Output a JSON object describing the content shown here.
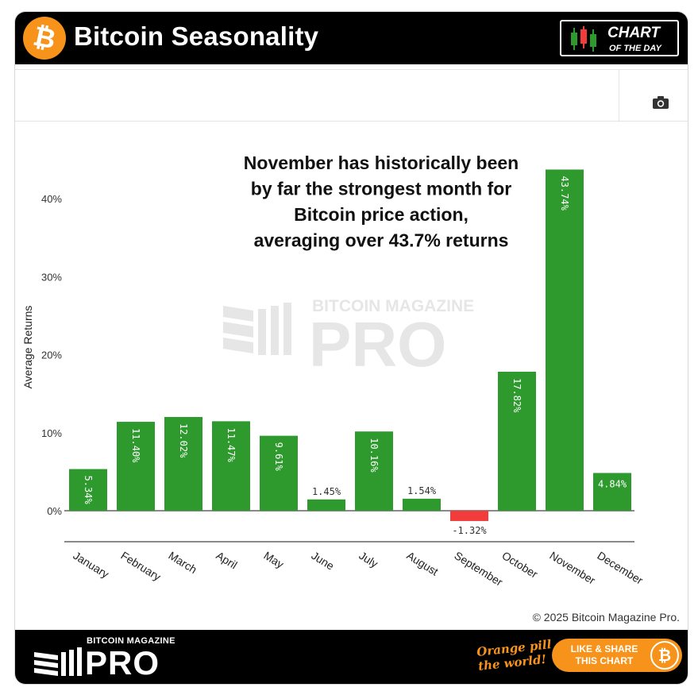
{
  "header": {
    "title": "Bitcoin Seasonality",
    "logo_glyph": "₿",
    "badge_line1": "CHART",
    "badge_line2": "OF THE DAY"
  },
  "toolbar": {
    "camera_icon": "camera-icon"
  },
  "chart_data": {
    "type": "bar",
    "categories": [
      "January",
      "February",
      "March",
      "April",
      "May",
      "June",
      "July",
      "August",
      "September",
      "October",
      "November",
      "December"
    ],
    "values": [
      5.34,
      11.4,
      12.02,
      11.47,
      9.61,
      1.45,
      10.16,
      1.54,
      -1.32,
      17.82,
      43.74,
      4.84
    ],
    "value_labels": [
      "5.34%",
      "11.40%",
      "12.02%",
      "11.47%",
      "9.61%",
      "1.45%",
      "10.16%",
      "1.54%",
      "-1.32%",
      "17.82%",
      "43.74%",
      "4.84%"
    ],
    "ylabel": "Average Returns",
    "yticks": [
      0,
      10,
      20,
      30,
      40
    ],
    "ytick_labels": [
      "0%",
      "10%",
      "20%",
      "30%",
      "40%"
    ],
    "ylim": [
      -4,
      47
    ],
    "colors": {
      "positive": "#2e9a2e",
      "negative": "#f23b3b"
    },
    "annotation": "November has historically been by far the strongest month for Bitcoin price action, averaging over 43.7% returns",
    "watermark_small": "BITCOIN MAGAZINE",
    "watermark_big": "PRO",
    "grid": false
  },
  "copyright": "© 2025 Bitcoin Magazine Pro.",
  "footer": {
    "brand_small": "BITCOIN MAGAZINE",
    "brand_big": "PRO",
    "slogan_line1": "Orange pill",
    "slogan_line2": "the world!",
    "share_line1": "LIKE & SHARE",
    "share_line2": "THIS CHART",
    "coin_glyph": "₿"
  }
}
